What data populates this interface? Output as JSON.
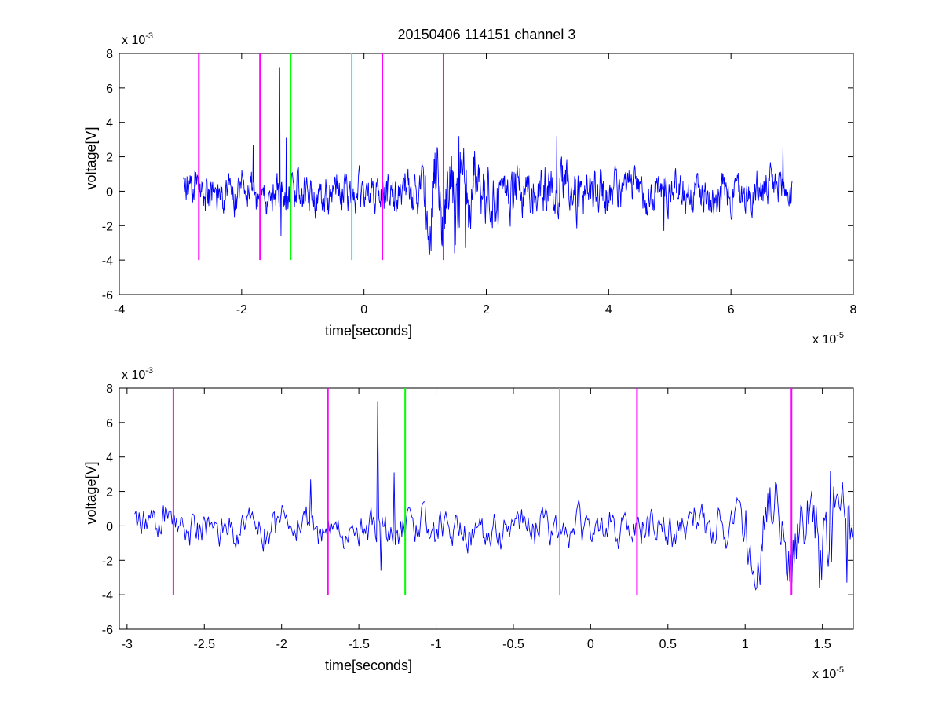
{
  "figure": {
    "title": "20150406 114151 channel 3",
    "colors": {
      "signal": "#0000ff",
      "marker_magenta": "#ff00ff",
      "marker_green": "#00ff00",
      "marker_cyan": "#00ffff",
      "axes": "#000000"
    }
  },
  "chart_data": [
    {
      "type": "line",
      "title": "20150406 114151 channel 3",
      "xlabel": "time[seconds]",
      "ylabel": "voltage[V]",
      "x_exponent_label": "x 10",
      "x_exponent": "-5",
      "y_exponent_label": "x 10",
      "y_exponent": "-3",
      "xlim": [
        -4,
        8
      ],
      "ylim": [
        -6,
        8
      ],
      "xticks": [
        -4,
        -2,
        0,
        2,
        4,
        6,
        8
      ],
      "yticks": [
        -6,
        -4,
        -2,
        0,
        2,
        4,
        6,
        8
      ],
      "xtick_labels": [
        "-4",
        "-2",
        "0",
        "2",
        "4",
        "6",
        "8"
      ],
      "ytick_labels": [
        "-6",
        "-4",
        "-2",
        "0",
        "2",
        "4",
        "6",
        "8"
      ],
      "grid": false,
      "signal": {
        "x_range": [
          -2.95,
          7.0
        ],
        "y_range": [
          -3.7,
          7.2
        ]
      },
      "markers": [
        {
          "x": -2.7,
          "color": "magenta",
          "y_range": [
            -4,
            8
          ]
        },
        {
          "x": -1.7,
          "color": "magenta",
          "y_range": [
            -4,
            8
          ]
        },
        {
          "x": -1.2,
          "color": "green",
          "y_range": [
            -4,
            8
          ]
        },
        {
          "x": -0.2,
          "color": "cyan",
          "y_range": [
            -4,
            8
          ]
        },
        {
          "x": 0.3,
          "color": "magenta",
          "y_range": [
            -4,
            8
          ]
        },
        {
          "x": 1.3,
          "color": "magenta",
          "y_range": [
            -4,
            8
          ]
        }
      ]
    },
    {
      "type": "line",
      "title": "",
      "xlabel": "time[seconds]",
      "ylabel": "voltage[V]",
      "x_exponent_label": "x 10",
      "x_exponent": "-5",
      "y_exponent_label": "x 10",
      "y_exponent": "-3",
      "xlim": [
        -3.05,
        1.7
      ],
      "ylim": [
        -6,
        8
      ],
      "xticks": [
        -3,
        -2.5,
        -2,
        -1.5,
        -1,
        -0.5,
        0,
        0.5,
        1,
        1.5
      ],
      "yticks": [
        -6,
        -4,
        -2,
        0,
        2,
        4,
        6,
        8
      ],
      "xtick_labels": [
        "-3",
        "-2.5",
        "-2",
        "-1.5",
        "-1",
        "-0.5",
        "0",
        "0.5",
        "1",
        "1.5"
      ],
      "ytick_labels": [
        "-6",
        "-4",
        "-2",
        "0",
        "2",
        "4",
        "6",
        "8"
      ],
      "grid": false,
      "signal": {
        "x_range": [
          -2.95,
          1.7
        ],
        "y_range": [
          -3.7,
          7.2
        ]
      },
      "markers": [
        {
          "x": -2.7,
          "color": "magenta",
          "y_range": [
            -4,
            8
          ]
        },
        {
          "x": -1.7,
          "color": "magenta",
          "y_range": [
            -4,
            8
          ]
        },
        {
          "x": -1.2,
          "color": "green",
          "y_range": [
            -4,
            8
          ]
        },
        {
          "x": -0.2,
          "color": "cyan",
          "y_range": [
            -4,
            8
          ]
        },
        {
          "x": 0.3,
          "color": "magenta",
          "y_range": [
            -4,
            8
          ]
        },
        {
          "x": 1.3,
          "color": "magenta",
          "y_range": [
            -4,
            8
          ]
        }
      ]
    }
  ]
}
